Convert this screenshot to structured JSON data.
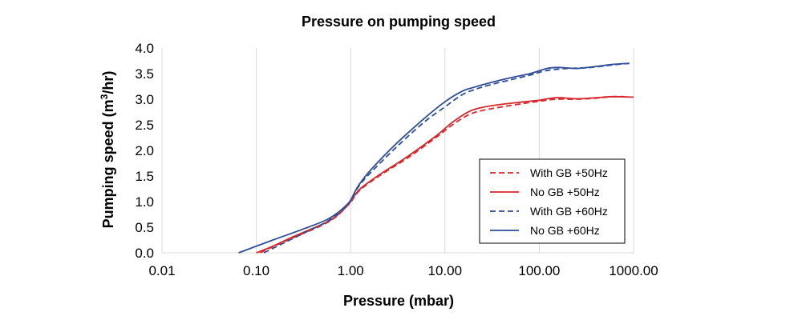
{
  "chart_data": {
    "type": "line",
    "title": "Pressure on pumping speed",
    "xlabel": "Pressure (mbar)",
    "ylabel_main": "Pumping speed (m",
    "ylabel_sup": "3",
    "ylabel_tail": "/hr)",
    "x_scale": "log",
    "xlim": [
      0.01,
      1000
    ],
    "ylim": [
      0,
      4
    ],
    "x_ticks": [
      0.01,
      0.1,
      1,
      10,
      100,
      1000
    ],
    "x_tick_labels": [
      "0.01",
      "0.10",
      "1.00",
      "10.00",
      "100.00",
      "1000.00"
    ],
    "y_ticks": [
      0,
      0.5,
      1,
      1.5,
      2,
      2.5,
      3,
      3.5,
      4
    ],
    "y_tick_labels": [
      "0.0",
      "0.5",
      "1.0",
      "1.5",
      "2.0",
      "2.5",
      "3.0",
      "3.5",
      "4.0"
    ],
    "grid": "vertical",
    "legend_position": "bottom-right",
    "series": [
      {
        "name": "With GB +50Hz",
        "color": "#d9262b",
        "dash": "dashed",
        "x": [
          0.11,
          0.15,
          0.25,
          0.45,
          0.6,
          0.75,
          0.9,
          1.0,
          1.1,
          1.3,
          2,
          4,
          8,
          12,
          18,
          25,
          40,
          70,
          100,
          150,
          250,
          400,
          600,
          800
        ],
        "y": [
          0.0,
          0.12,
          0.3,
          0.5,
          0.62,
          0.75,
          0.9,
          0.98,
          1.1,
          1.25,
          1.5,
          1.85,
          2.25,
          2.5,
          2.7,
          2.78,
          2.85,
          2.92,
          2.96,
          3.0,
          3.0,
          3.02,
          3.05,
          3.05
        ]
      },
      {
        "name": "No GB +50Hz",
        "color": "#d9262b",
        "dash": "solid",
        "x": [
          0.1,
          0.15,
          0.25,
          0.45,
          0.6,
          0.75,
          0.9,
          1.0,
          1.1,
          1.3,
          2,
          4,
          8,
          12,
          18,
          25,
          40,
          70,
          100,
          150,
          250,
          400,
          600,
          1000
        ],
        "y": [
          0.0,
          0.13,
          0.32,
          0.52,
          0.63,
          0.76,
          0.9,
          1.0,
          1.12,
          1.27,
          1.52,
          1.88,
          2.28,
          2.55,
          2.76,
          2.84,
          2.9,
          2.95,
          2.98,
          3.03,
          3.01,
          3.03,
          3.05,
          3.04
        ]
      },
      {
        "name": "With GB +60Hz",
        "color": "#2e4e9a",
        "dash": "dashed",
        "x": [
          0.12,
          0.2,
          0.35,
          0.55,
          0.75,
          0.9,
          1.0,
          1.2,
          1.6,
          3,
          6,
          10,
          15,
          20,
          30,
          50,
          80,
          120,
          200,
          350,
          600,
          900
        ],
        "y": [
          0.0,
          0.2,
          0.42,
          0.6,
          0.78,
          0.92,
          1.02,
          1.28,
          1.55,
          2.05,
          2.55,
          2.85,
          3.08,
          3.18,
          3.28,
          3.38,
          3.47,
          3.56,
          3.6,
          3.62,
          3.67,
          3.7
        ]
      },
      {
        "name": "No GB +60Hz",
        "color": "#2e4e9a",
        "dash": "solid",
        "x": [
          0.065,
          0.15,
          0.3,
          0.55,
          0.75,
          0.9,
          1.0,
          1.2,
          1.6,
          3,
          6,
          10,
          15,
          20,
          30,
          50,
          80,
          120,
          160,
          250,
          400,
          600,
          900
        ],
        "y": [
          0.0,
          0.25,
          0.45,
          0.64,
          0.8,
          0.93,
          1.03,
          1.3,
          1.6,
          2.12,
          2.62,
          2.95,
          3.15,
          3.23,
          3.32,
          3.42,
          3.5,
          3.6,
          3.62,
          3.6,
          3.64,
          3.68,
          3.7
        ]
      }
    ]
  }
}
